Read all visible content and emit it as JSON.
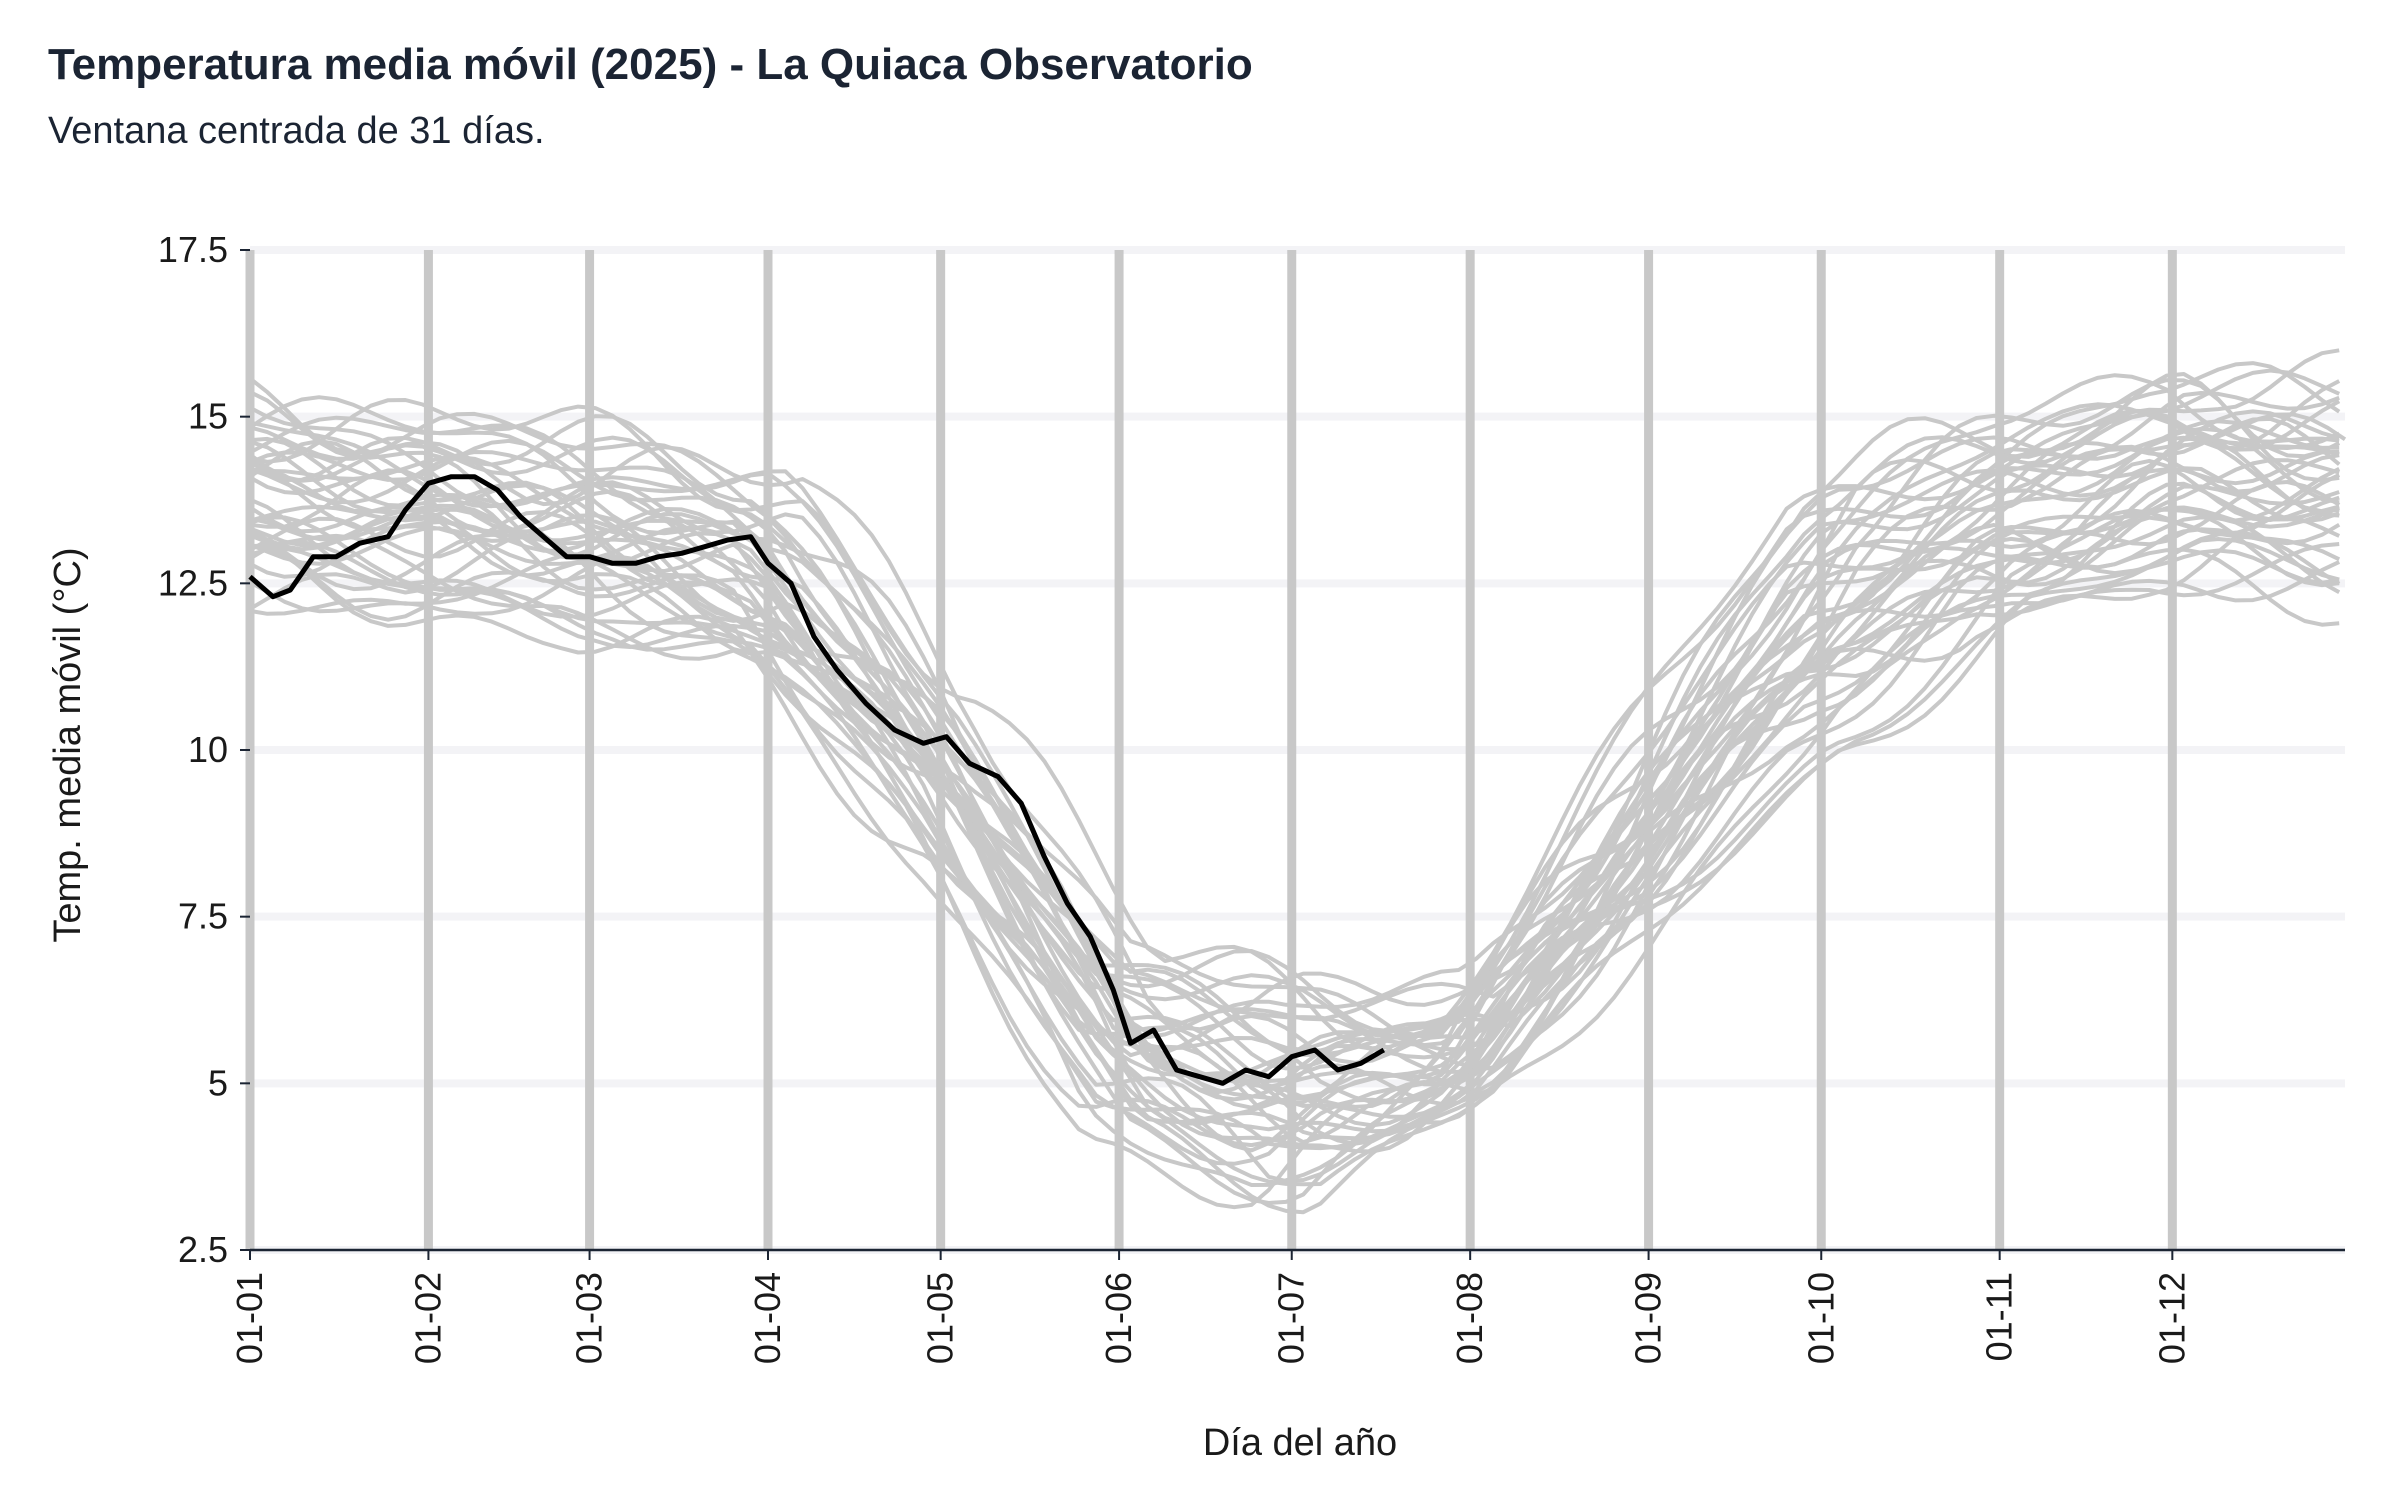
{
  "header": {
    "title": "Temperatura media móvil (2025) - La Quiaca Observatorio",
    "subtitle": "Ventana centrada de 31 días."
  },
  "colors": {
    "highlight": "#000000",
    "history": "#c8c8c8",
    "month_lines": "#c8c8c8",
    "grid": "#f3f3f6",
    "axis": "#1b2433"
  },
  "chart_data": {
    "type": "line",
    "title": "Temperatura media móvil (2025) - La Quiaca Observatorio",
    "subtitle": "Ventana centrada de 31 días.",
    "xlabel": "Día del año",
    "ylabel": "Temp. media móvil (°C)",
    "ylim": [
      2.5,
      17.5
    ],
    "xlim": [
      1,
      365
    ],
    "y_ticks": [
      2.5,
      5,
      7.5,
      10,
      12.5,
      15,
      17.5
    ],
    "y_tick_labels": [
      "2.5",
      "5",
      "7.5",
      "10",
      "12.5",
      "15",
      "17.5"
    ],
    "x_ticks": [
      1,
      32,
      60,
      91,
      121,
      152,
      182,
      213,
      244,
      274,
      305,
      335
    ],
    "x_tick_labels": [
      "01-01",
      "01-02",
      "01-03",
      "01-04",
      "01-05",
      "01-06",
      "01-07",
      "01-08",
      "01-09",
      "01-10",
      "01-11",
      "01-12"
    ],
    "grid": "horizontal",
    "vertical_month_lines": true,
    "series": [
      {
        "year": 2025,
        "highlight": true,
        "x": [
          1,
          5,
          8,
          12,
          16,
          20,
          25,
          28,
          32,
          36,
          40,
          44,
          48,
          52,
          56,
          60,
          64,
          68,
          72,
          76,
          80,
          84,
          88,
          91,
          95,
          99,
          103,
          108,
          113,
          118,
          122,
          126,
          131,
          135,
          139,
          143,
          147,
          151,
          154,
          158,
          162,
          166,
          170,
          174,
          178,
          182,
          186,
          190,
          194,
          198
        ],
        "y": [
          12.6,
          12.3,
          12.4,
          12.9,
          12.9,
          13.1,
          13.2,
          13.6,
          14.0,
          14.1,
          14.1,
          13.9,
          13.5,
          13.2,
          12.9,
          12.9,
          12.8,
          12.8,
          12.9,
          12.95,
          13.05,
          13.15,
          13.2,
          12.8,
          12.5,
          11.7,
          11.2,
          10.7,
          10.3,
          10.1,
          10.2,
          9.8,
          9.6,
          9.2,
          8.4,
          7.7,
          7.2,
          6.4,
          5.6,
          5.8,
          5.2,
          5.1,
          5.0,
          5.2,
          5.1,
          5.4,
          5.5,
          5.2,
          5.3,
          5.5
        ]
      }
    ],
    "history": {
      "description_years": "~40 previous years (unlabeled grey lines)",
      "envelope_x": [
        1,
        32,
        60,
        91,
        121,
        152,
        182,
        213,
        244,
        274,
        305,
        335,
        365
      ],
      "envelope_low": [
        12.0,
        11.5,
        11.8,
        11.0,
        8.0,
        4.0,
        3.0,
        4.5,
        7.0,
        9.5,
        11.5,
        12.0,
        12.0
      ],
      "envelope_high": [
        15.8,
        15.5,
        14.8,
        14.5,
        11.5,
        7.2,
        6.8,
        6.5,
        10.5,
        14.5,
        15.5,
        16.3,
        15.8
      ]
    }
  }
}
